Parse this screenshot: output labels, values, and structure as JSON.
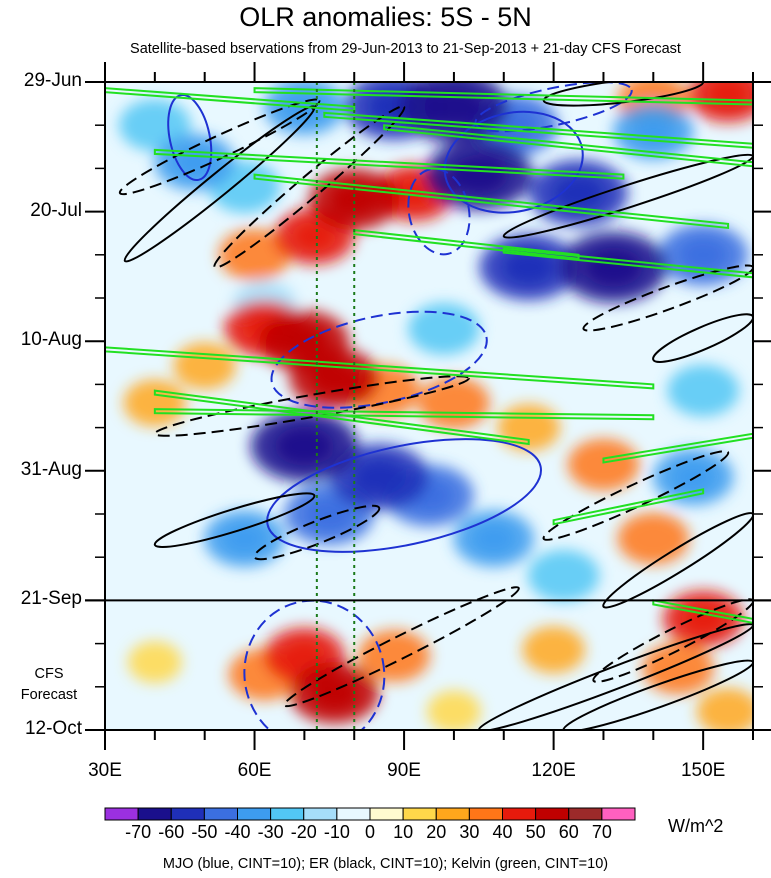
{
  "chart_data": {
    "type": "heatmap",
    "title": "OLR anomalies: 5S - 5N",
    "subtitle": "Satellite-based bservations from 29-Jun-2013 to 21-Sep-2013 + 21-day CFS Forecast",
    "y_axis": {
      "labels": [
        "29-Jun",
        "20-Jul",
        "10-Aug",
        "31-Aug",
        "21-Sep",
        "12-Oct"
      ],
      "days_from_start": [
        0,
        21,
        42,
        63,
        84,
        105
      ],
      "range_days": [
        0,
        105
      ],
      "direction": "time increases downward"
    },
    "x_axis": {
      "labels": [
        "30E",
        "60E",
        "90E",
        "120E",
        "150E"
      ],
      "values": [
        30,
        60,
        90,
        120,
        150
      ],
      "range": [
        30,
        160
      ]
    },
    "observation_end_day": 84,
    "forecast_label_line1": "CFS",
    "forecast_label_line2": "Forecast",
    "reference_longitudes": [
      72.5,
      80
    ],
    "colorbar": {
      "levels": [
        -70,
        -60,
        -50,
        -40,
        -30,
        -20,
        -10,
        0,
        10,
        20,
        30,
        40,
        50,
        60,
        70
      ],
      "level_labels": [
        "-70",
        "-60",
        "-50",
        "-40",
        "-30",
        "-20",
        "-10",
        "0",
        "10",
        "20",
        "30",
        "40",
        "50",
        "60",
        "70"
      ],
      "colors": [
        "#9b30e0",
        "#1a0f8c",
        "#1f2fb8",
        "#3b6fe0",
        "#3d9cef",
        "#52c7f5",
        "#a6defa",
        "#e8f8ff",
        "#fffbd0",
        "#ffd84a",
        "#ffa71c",
        "#ff7618",
        "#e61a0c",
        "#c00000",
        "#9c2a2a",
        "#ff60c0"
      ],
      "units": "W/m^2"
    },
    "contour_legend": "MJO (blue, CINT=10); ER (black, CINT=10); Kelvin (green, CINT=10)",
    "anomaly_blobs": [
      {
        "lon": 40,
        "day": 7,
        "value": -30
      },
      {
        "lon": 48,
        "day": 13,
        "value": -40
      },
      {
        "lon": 58,
        "day": 17,
        "value": -30
      },
      {
        "lon": 70,
        "day": 4,
        "value": -40
      },
      {
        "lon": 88,
        "day": 4,
        "value": -60
      },
      {
        "lon": 100,
        "day": 4,
        "value": -70
      },
      {
        "lon": 112,
        "day": 7,
        "value": -50
      },
      {
        "lon": 105,
        "day": 15,
        "value": -70
      },
      {
        "lon": 125,
        "day": 18,
        "value": -60
      },
      {
        "lon": 140,
        "day": 8,
        "value": -40
      },
      {
        "lon": 115,
        "day": 30,
        "value": -60
      },
      {
        "lon": 132,
        "day": 30,
        "value": -70
      },
      {
        "lon": 150,
        "day": 28,
        "value": -50
      },
      {
        "lon": 62,
        "day": 36,
        "value": -20
      },
      {
        "lon": 98,
        "day": 40,
        "value": -30
      },
      {
        "lon": 70,
        "day": 59,
        "value": -70
      },
      {
        "lon": 85,
        "day": 64,
        "value": -60
      },
      {
        "lon": 75,
        "day": 70,
        "value": -50
      },
      {
        "lon": 95,
        "day": 67,
        "value": -50
      },
      {
        "lon": 108,
        "day": 74,
        "value": -40
      },
      {
        "lon": 58,
        "day": 74,
        "value": -40
      },
      {
        "lon": 122,
        "day": 80,
        "value": -30
      },
      {
        "lon": 148,
        "day": 64,
        "value": -40
      },
      {
        "lon": 150,
        "day": 50,
        "value": -30
      },
      {
        "lon": 140,
        "day": 3,
        "value": 30
      },
      {
        "lon": 155,
        "day": 2,
        "value": 40
      },
      {
        "lon": 80,
        "day": 19,
        "value": 50
      },
      {
        "lon": 92,
        "day": 18,
        "value": 40
      },
      {
        "lon": 72,
        "day": 25,
        "value": 40
      },
      {
        "lon": 60,
        "day": 28,
        "value": 30
      },
      {
        "lon": 70,
        "day": 42,
        "value": 50
      },
      {
        "lon": 76,
        "day": 48,
        "value": 50
      },
      {
        "lon": 62,
        "day": 40,
        "value": 40
      },
      {
        "lon": 86,
        "day": 50,
        "value": 30
      },
      {
        "lon": 100,
        "day": 52,
        "value": 30
      },
      {
        "lon": 50,
        "day": 46,
        "value": 20
      },
      {
        "lon": 130,
        "day": 62,
        "value": 30
      },
      {
        "lon": 140,
        "day": 74,
        "value": 30
      },
      {
        "lon": 115,
        "day": 56,
        "value": 20
      },
      {
        "lon": 40,
        "day": 52,
        "value": 20
      },
      {
        "lon": 70,
        "day": 93,
        "value": 40
      },
      {
        "lon": 76,
        "day": 99,
        "value": 50
      },
      {
        "lon": 62,
        "day": 96,
        "value": 30
      },
      {
        "lon": 88,
        "day": 93,
        "value": 30
      },
      {
        "lon": 150,
        "day": 87,
        "value": 40
      },
      {
        "lon": 145,
        "day": 95,
        "value": 30
      },
      {
        "lon": 155,
        "day": 102,
        "value": 20
      },
      {
        "lon": 120,
        "day": 92,
        "value": 20
      },
      {
        "lon": 40,
        "day": 94,
        "value": 10
      },
      {
        "lon": 100,
        "day": 102,
        "value": 10
      }
    ],
    "mjo_contours": [
      {
        "center": [
          47,
          9
        ],
        "radii": [
          4,
          7
        ],
        "style": "solid"
      },
      {
        "center": [
          112,
          13
        ],
        "radii": [
          14,
          8
        ],
        "style": "solid"
      },
      {
        "center": [
          97,
          21
        ],
        "radii": [
          6,
          7
        ],
        "style": "dashed"
      },
      {
        "center": [
          85,
          45
        ],
        "radii": [
          22,
          7
        ],
        "style": "dashed"
      },
      {
        "center": [
          90,
          67
        ],
        "radii": [
          28,
          8
        ],
        "style": "solid"
      },
      {
        "center": [
          72,
          96
        ],
        "radii": [
          14,
          12
        ],
        "style": "dashed"
      },
      {
        "center": [
          120,
          4
        ],
        "radii": [
          16,
          3
        ],
        "style": "dashed"
      }
    ],
    "er_contours": [
      {
        "start": [
          33,
          18
        ],
        "end": [
          73,
          3
        ],
        "style": "dashed"
      },
      {
        "start": [
          34,
          29
        ],
        "end": [
          72,
          4
        ],
        "style": "solid"
      },
      {
        "start": [
          52,
          30
        ],
        "end": [
          90,
          4
        ],
        "style": "dashed"
      },
      {
        "start": [
          118,
          3
        ],
        "end": [
          150,
          0
        ],
        "style": "solid"
      },
      {
        "start": [
          110,
          25
        ],
        "end": [
          160,
          12
        ],
        "style": "solid"
      },
      {
        "start": [
          126,
          40
        ],
        "end": [
          160,
          30
        ],
        "style": "dashed"
      },
      {
        "start": [
          140,
          45
        ],
        "end": [
          160,
          38
        ],
        "style": "solid"
      },
      {
        "start": [
          40,
          57
        ],
        "end": [
          103,
          48
        ],
        "style": "dashed"
      },
      {
        "start": [
          40,
          75
        ],
        "end": [
          72,
          67
        ],
        "style": "solid"
      },
      {
        "start": [
          60,
          77
        ],
        "end": [
          85,
          69
        ],
        "style": "dashed"
      },
      {
        "start": [
          118,
          74
        ],
        "end": [
          155,
          60
        ],
        "style": "dashed"
      },
      {
        "start": [
          130,
          85
        ],
        "end": [
          160,
          70
        ],
        "style": "solid"
      },
      {
        "start": [
          66,
          101
        ],
        "end": [
          113,
          82
        ],
        "style": "dashed"
      },
      {
        "start": [
          105,
          105
        ],
        "end": [
          160,
          88
        ],
        "style": "solid"
      },
      {
        "start": [
          122,
          105
        ],
        "end": [
          160,
          94
        ],
        "style": "solid"
      },
      {
        "start": [
          128,
          97
        ],
        "end": [
          160,
          84
        ],
        "style": "dashed"
      }
    ],
    "kelvin_contours": [
      {
        "start": [
          30,
          1
        ],
        "end": [
          80,
          4
        ]
      },
      {
        "start": [
          60,
          1
        ],
        "end": [
          160,
          3
        ]
      },
      {
        "start": [
          74,
          5
        ],
        "end": [
          160,
          10
        ]
      },
      {
        "start": [
          86,
          7
        ],
        "end": [
          160,
          13
        ]
      },
      {
        "start": [
          40,
          11
        ],
        "end": [
          134,
          15
        ]
      },
      {
        "start": [
          60,
          15
        ],
        "end": [
          155,
          23
        ]
      },
      {
        "start": [
          80,
          24
        ],
        "end": [
          125,
          28
        ]
      },
      {
        "start": [
          110,
          27
        ],
        "end": [
          160,
          31
        ]
      },
      {
        "start": [
          30,
          43
        ],
        "end": [
          140,
          49
        ]
      },
      {
        "start": [
          40,
          53
        ],
        "end": [
          140,
          54
        ]
      },
      {
        "start": [
          40,
          50
        ],
        "end": [
          115,
          58
        ]
      },
      {
        "start": [
          130,
          61
        ],
        "end": [
          160,
          57
        ]
      },
      {
        "start": [
          120,
          71
        ],
        "end": [
          150,
          66
        ]
      },
      {
        "start": [
          140,
          84
        ],
        "end": [
          160,
          87
        ]
      }
    ]
  },
  "labels": {
    "title": "OLR anomalies: 5S - 5N",
    "subtitle": "Satellite-based bservations from 29-Jun-2013 to 21-Sep-2013 + 21-day CFS Forecast",
    "units": "W/m^2",
    "footer": "MJO (blue, CINT=10); ER (black, CINT=10); Kelvin (green, CINT=10)",
    "cfs_line1": "CFS",
    "cfs_line2": "Forecast"
  }
}
